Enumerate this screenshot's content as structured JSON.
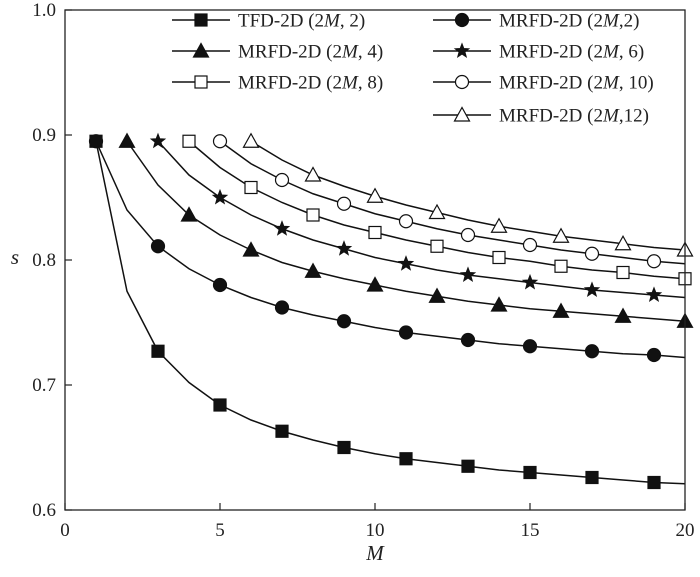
{
  "chart_data": {
    "type": "line",
    "title": "",
    "xlabel": "M",
    "ylabel": "s",
    "xlim": [
      0,
      20
    ],
    "ylim": [
      0.6,
      1.0
    ],
    "x_ticks": [
      0,
      5,
      10,
      15,
      20
    ],
    "y_ticks": [
      0.6,
      0.7,
      0.8,
      0.9,
      1.0
    ],
    "x_tick_labels": [
      "0",
      "5",
      "10",
      "15",
      "20"
    ],
    "y_tick_labels": [
      "0.6",
      "0.7",
      "0.8",
      "0.9",
      "1.0"
    ],
    "grid": false,
    "legend_position": "top-right",
    "series": [
      {
        "name": "TFD-2D (2M, 2)",
        "label_parts": [
          "TFD-2D (2",
          "M",
          ", 2)"
        ],
        "marker": "square-filled",
        "x": [
          1,
          2,
          3,
          4,
          5,
          6,
          7,
          8,
          9,
          10,
          11,
          12,
          13,
          14,
          15,
          16,
          17,
          18,
          19,
          20
        ],
        "y": [
          0.895,
          0.775,
          0.727,
          0.702,
          0.684,
          0.672,
          0.663,
          0.656,
          0.65,
          0.645,
          0.641,
          0.638,
          0.635,
          0.632,
          0.63,
          0.628,
          0.626,
          0.624,
          0.622,
          0.621
        ],
        "marker_x": [
          1,
          3,
          5,
          7,
          9,
          11,
          13,
          15,
          17,
          19
        ]
      },
      {
        "name": "MRFD-2D (2M,2)",
        "label_parts": [
          "MRFD-2D (2",
          "M",
          ",2)"
        ],
        "marker": "circle-filled",
        "x": [
          1,
          2,
          3,
          4,
          5,
          6,
          7,
          8,
          9,
          10,
          11,
          12,
          13,
          14,
          15,
          16,
          17,
          18,
          19,
          20
        ],
        "y": [
          0.895,
          0.84,
          0.811,
          0.793,
          0.78,
          0.77,
          0.762,
          0.756,
          0.751,
          0.746,
          0.742,
          0.739,
          0.736,
          0.733,
          0.731,
          0.729,
          0.727,
          0.725,
          0.724,
          0.722
        ],
        "marker_x": [
          1,
          3,
          5,
          7,
          9,
          11,
          13,
          15,
          17,
          19
        ]
      },
      {
        "name": "MRFD-2D (2M, 4)",
        "label_parts": [
          "MRFD-2D (2",
          "M",
          ", 4)"
        ],
        "marker": "triangle-filled",
        "x": [
          2,
          3,
          4,
          5,
          6,
          7,
          8,
          9,
          10,
          11,
          12,
          13,
          14,
          15,
          16,
          17,
          18,
          19,
          20
        ],
        "y": [
          0.895,
          0.86,
          0.836,
          0.82,
          0.808,
          0.798,
          0.791,
          0.785,
          0.78,
          0.775,
          0.771,
          0.767,
          0.764,
          0.761,
          0.759,
          0.757,
          0.755,
          0.753,
          0.751
        ],
        "marker_x": [
          2,
          4,
          6,
          8,
          10,
          12,
          14,
          16,
          18,
          20
        ]
      },
      {
        "name": "MRFD-2D (2M, 6)",
        "label_parts": [
          "MRFD-2D (2",
          "M",
          ", 6)"
        ],
        "marker": "star-filled",
        "x": [
          3,
          4,
          5,
          6,
          7,
          8,
          9,
          10,
          11,
          12,
          13,
          14,
          15,
          16,
          17,
          18,
          19,
          20
        ],
        "y": [
          0.895,
          0.868,
          0.85,
          0.836,
          0.825,
          0.816,
          0.809,
          0.802,
          0.797,
          0.792,
          0.788,
          0.785,
          0.782,
          0.779,
          0.776,
          0.774,
          0.772,
          0.77
        ],
        "marker_x": [
          3,
          5,
          7,
          9,
          11,
          13,
          15,
          17,
          19
        ]
      },
      {
        "name": "MRFD-2D (2M, 8)",
        "label_parts": [
          "MRFD-2D (2",
          "M",
          ", 8)"
        ],
        "marker": "square-open",
        "x": [
          4,
          5,
          6,
          7,
          8,
          9,
          10,
          11,
          12,
          13,
          14,
          15,
          16,
          17,
          18,
          19,
          20
        ],
        "y": [
          0.895,
          0.874,
          0.858,
          0.846,
          0.836,
          0.828,
          0.822,
          0.816,
          0.811,
          0.806,
          0.802,
          0.799,
          0.795,
          0.792,
          0.79,
          0.787,
          0.785
        ],
        "marker_x": [
          4,
          6,
          8,
          10,
          12,
          14,
          16,
          18,
          20
        ]
      },
      {
        "name": "MRFD-2D (2M, 10)",
        "label_parts": [
          "MRFD-2D (2",
          "M",
          ", 10)"
        ],
        "marker": "circle-open",
        "x": [
          5,
          6,
          7,
          8,
          9,
          10,
          11,
          12,
          13,
          14,
          15,
          16,
          17,
          18,
          19,
          20
        ],
        "y": [
          0.895,
          0.877,
          0.864,
          0.853,
          0.845,
          0.837,
          0.831,
          0.825,
          0.82,
          0.816,
          0.812,
          0.808,
          0.805,
          0.802,
          0.799,
          0.797
        ],
        "marker_x": [
          5,
          7,
          9,
          11,
          13,
          15,
          17,
          19
        ]
      },
      {
        "name": "MRFD-2D (2M,12)",
        "label_parts": [
          "MRFD-2D (2",
          "M",
          ",12)"
        ],
        "marker": "triangle-open",
        "x": [
          6,
          7,
          8,
          9,
          10,
          11,
          12,
          13,
          14,
          15,
          16,
          17,
          18,
          19,
          20
        ],
        "y": [
          0.895,
          0.88,
          0.868,
          0.859,
          0.851,
          0.844,
          0.838,
          0.832,
          0.827,
          0.823,
          0.819,
          0.816,
          0.813,
          0.81,
          0.808
        ],
        "marker_x": [
          6,
          8,
          10,
          12,
          14,
          16,
          18,
          20
        ]
      }
    ]
  }
}
